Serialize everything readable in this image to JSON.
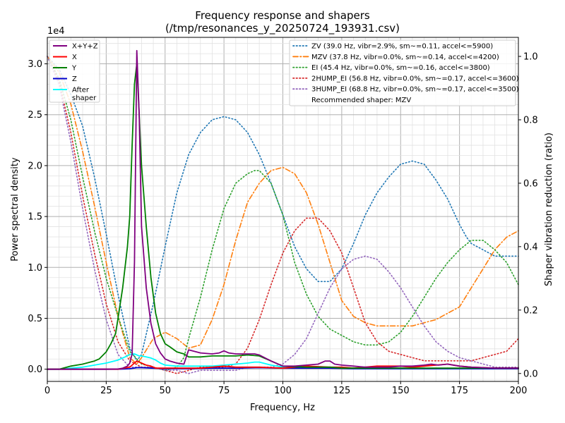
{
  "chart_data": {
    "type": "line",
    "title": "Frequency response and shapers",
    "subtitle": "(/tmp/resonances_y_20250724_193931.csv)",
    "xlabel": "Frequency, Hz",
    "ylabel": "Power spectral density",
    "y2label": "Shaper vibration reduction (ratio)",
    "y_offset_text": "1e4",
    "xlim": [
      0,
      200
    ],
    "ylim": [
      -1.2,
      32.6
    ],
    "ylim_unit": "x1e4",
    "y2lim": [
      -0.025,
      1.06
    ],
    "x_ticks": [
      0,
      25,
      50,
      75,
      100,
      125,
      150,
      175,
      200
    ],
    "x_tick_labels": [
      "0",
      "25",
      "50",
      "75",
      "100",
      "125",
      "150",
      "175",
      "200"
    ],
    "y_ticks": [
      0,
      5,
      10,
      15,
      20,
      25,
      30
    ],
    "y_tick_labels": [
      "0.0",
      "0.5",
      "1.0",
      "1.5",
      "2.0",
      "2.5",
      "3.0"
    ],
    "y2_ticks": [
      0,
      0.2,
      0.4,
      0.6,
      0.8,
      1.0
    ],
    "y2_tick_labels": [
      "0.0",
      "0.2",
      "0.4",
      "0.6",
      "0.8",
      "1.0"
    ],
    "grid": true,
    "minor_grid": true,
    "legend_left_placement": "top-left",
    "legend_right_placement": "top-right",
    "series": [
      {
        "name": "X+Y+Z",
        "axis": "left",
        "color": "#800080",
        "style": "solid",
        "x": [
          0,
          5,
          10,
          15,
          20,
          25,
          30,
          32,
          34,
          35,
          36,
          37,
          38,
          39,
          40,
          42,
          44,
          46,
          48,
          50,
          52,
          55,
          58,
          60,
          65,
          70,
          73,
          75,
          77,
          80,
          85,
          88,
          90,
          95,
          100,
          105,
          110,
          115,
          118,
          120,
          122,
          125,
          130,
          135,
          140,
          145,
          150,
          155,
          160,
          163,
          166,
          170,
          175,
          180,
          190,
          200
        ],
        "y": [
          0,
          0,
          0,
          0,
          0,
          0,
          0.02,
          0.1,
          0.3,
          0.6,
          1.5,
          10.5,
          31.3,
          25,
          14,
          8,
          4.5,
          2.5,
          1.6,
          1,
          0.8,
          0.6,
          0.5,
          1.9,
          1.6,
          1.5,
          1.6,
          1.8,
          1.6,
          1.5,
          1.5,
          1.5,
          1.4,
          0.8,
          0.3,
          0.3,
          0.4,
          0.5,
          0.8,
          0.8,
          0.5,
          0.4,
          0.3,
          0.2,
          0.2,
          0.2,
          0.3,
          0.3,
          0.4,
          0.5,
          0.4,
          0.5,
          0.3,
          0.2,
          0.1,
          0.1
        ]
      },
      {
        "name": "X",
        "axis": "left",
        "color": "#ff0000",
        "style": "solid",
        "x": [
          0,
          10,
          20,
          25,
          30,
          35,
          37,
          38,
          39,
          40,
          42,
          44,
          46,
          50,
          55,
          60,
          65,
          70,
          75,
          80,
          90,
          100,
          110,
          120,
          125,
          130,
          140,
          150,
          155,
          160,
          165,
          170,
          175,
          180,
          190,
          200
        ],
        "y": [
          0,
          0,
          0,
          0,
          0,
          0.2,
          0.6,
          0.8,
          0.7,
          0.6,
          0.4,
          0.3,
          0.1,
          0.1,
          0.1,
          0.1,
          0.1,
          0.2,
          0.3,
          0.2,
          0.2,
          0.1,
          0.3,
          0.2,
          0.2,
          0.1,
          0.3,
          0.3,
          0.2,
          0.3,
          0.4,
          0.5,
          0.3,
          0.2,
          0.1,
          0.1
        ]
      },
      {
        "name": "Y",
        "axis": "left",
        "color": "#008000",
        "style": "solid",
        "x": [
          0,
          5,
          10,
          15,
          20,
          22,
          25,
          27,
          29,
          30,
          32,
          34,
          35,
          36,
          37,
          38,
          39,
          40,
          42,
          44,
          46,
          48,
          50,
          52,
          55,
          58,
          60,
          65,
          70,
          75,
          80,
          85,
          90,
          95,
          100,
          110,
          120,
          125,
          130,
          140,
          150,
          160,
          170,
          180,
          190,
          200
        ],
        "y": [
          0,
          0,
          0.3,
          0.5,
          0.8,
          1,
          1.7,
          2.5,
          3.5,
          5,
          8,
          12,
          15,
          22,
          28,
          30,
          25,
          20,
          14,
          9,
          5.5,
          3.5,
          2.5,
          2.2,
          1.7,
          1.5,
          1.2,
          1.2,
          1.3,
          1.3,
          1.3,
          1.4,
          1.3,
          0.8,
          0.3,
          0.2,
          0.2,
          0.1,
          0.1,
          0.1,
          0.1,
          0.1,
          0.1,
          0.1,
          0.1,
          0.1
        ]
      },
      {
        "name": "Z",
        "axis": "left",
        "color": "#0000cc",
        "style": "solid",
        "x": [
          0,
          10,
          20,
          30,
          35,
          38,
          40,
          45,
          50,
          60,
          70,
          80,
          90,
          100,
          110,
          120,
          130,
          140,
          150,
          160,
          170,
          180,
          190,
          200
        ],
        "y": [
          0,
          0,
          0,
          0,
          0.05,
          0.15,
          0.15,
          0.1,
          0.05,
          0.05,
          0.1,
          0.1,
          0.15,
          0.1,
          0.1,
          0.1,
          0.05,
          0.05,
          0.05,
          0.05,
          0.05,
          0.05,
          0.05,
          0.05
        ]
      },
      {
        "name": "After\nshaper",
        "axis": "left",
        "color": "#00ffff",
        "style": "solid",
        "x": [
          0,
          5,
          10,
          15,
          20,
          25,
          30,
          33,
          35,
          37,
          39,
          40,
          42,
          44,
          46,
          48,
          50,
          55,
          60,
          65,
          70,
          75,
          80,
          85,
          88,
          90,
          95,
          100,
          105,
          110,
          115,
          120,
          125,
          130,
          140,
          150,
          160,
          170,
          180,
          190,
          200
        ],
        "y": [
          0,
          0,
          0.1,
          0.2,
          0.4,
          0.6,
          0.9,
          1.2,
          1.45,
          1.5,
          1.3,
          1.3,
          1.2,
          1.1,
          0.9,
          0.6,
          0.4,
          0.3,
          0.3,
          0.3,
          0.3,
          0.4,
          0.5,
          0.6,
          0.7,
          0.7,
          0.4,
          0.2,
          0.2,
          0.15,
          0.2,
          0.15,
          0.1,
          0.05,
          0.05,
          0.05,
          0.05,
          0.05,
          0.05,
          0.05,
          0.05
        ]
      },
      {
        "name": "ZV (39.0 Hz, vibr=2.9%, sm~=0.11, accel<=5900)",
        "axis": "right",
        "color": "#1f77b4",
        "style": "dotted",
        "x": [
          0,
          5,
          10,
          15,
          20,
          25,
          30,
          35,
          38,
          40,
          45,
          50,
          55,
          60,
          65,
          70,
          75,
          80,
          85,
          90,
          95,
          100,
          105,
          110,
          115,
          120,
          125,
          130,
          135,
          140,
          145,
          150,
          155,
          160,
          165,
          170,
          175,
          178,
          180,
          185,
          190,
          195,
          200
        ],
        "y": [
          1.0,
          0.96,
          0.88,
          0.78,
          0.62,
          0.44,
          0.25,
          0.08,
          0.04,
          0.06,
          0.22,
          0.4,
          0.57,
          0.69,
          0.76,
          0.8,
          0.81,
          0.8,
          0.76,
          0.69,
          0.6,
          0.5,
          0.4,
          0.33,
          0.29,
          0.29,
          0.33,
          0.41,
          0.5,
          0.57,
          0.62,
          0.66,
          0.67,
          0.66,
          0.61,
          0.55,
          0.47,
          0.43,
          0.41,
          0.39,
          0.37,
          0.37,
          0.37
        ]
      },
      {
        "name": "MZV (37.8 Hz, vibr=0.0%, sm~=0.14, accel<=4200)",
        "axis": "right",
        "color": "#ff7f0e",
        "style": "dashdot",
        "x": [
          0,
          5,
          10,
          15,
          20,
          25,
          30,
          35,
          38,
          40,
          45,
          50,
          55,
          60,
          65,
          70,
          75,
          80,
          85,
          90,
          95,
          100,
          105,
          110,
          115,
          120,
          125,
          130,
          135,
          140,
          145,
          150,
          155,
          160,
          165,
          170,
          175,
          180,
          185,
          190,
          195,
          200
        ],
        "y": [
          1.0,
          0.95,
          0.85,
          0.7,
          0.53,
          0.35,
          0.18,
          0.05,
          0.03,
          0.05,
          0.11,
          0.13,
          0.11,
          0.08,
          0.09,
          0.17,
          0.28,
          0.42,
          0.54,
          0.6,
          0.64,
          0.65,
          0.63,
          0.57,
          0.47,
          0.35,
          0.23,
          0.18,
          0.16,
          0.15,
          0.15,
          0.15,
          0.15,
          0.16,
          0.17,
          0.19,
          0.21,
          0.27,
          0.33,
          0.39,
          0.43,
          0.45
        ]
      },
      {
        "name": "EI (45.4 Hz, vibr=0.0%, sm~=0.16, accel<=3800)",
        "axis": "right",
        "color": "#2ca02c",
        "style": "dotted",
        "x": [
          0,
          5,
          10,
          15,
          20,
          25,
          30,
          35,
          40,
          45,
          50,
          55,
          58,
          60,
          65,
          70,
          75,
          80,
          85,
          88,
          90,
          95,
          100,
          105,
          110,
          115,
          120,
          125,
          130,
          135,
          140,
          145,
          150,
          155,
          160,
          165,
          170,
          175,
          180,
          185,
          190,
          195,
          200
        ],
        "y": [
          1.0,
          0.93,
          0.8,
          0.62,
          0.45,
          0.3,
          0.18,
          0.07,
          0.03,
          0.02,
          0.01,
          0.02,
          0.05,
          0.11,
          0.24,
          0.39,
          0.52,
          0.6,
          0.63,
          0.64,
          0.64,
          0.6,
          0.5,
          0.35,
          0.25,
          0.18,
          0.14,
          0.12,
          0.1,
          0.09,
          0.09,
          0.1,
          0.13,
          0.18,
          0.24,
          0.3,
          0.35,
          0.39,
          0.42,
          0.42,
          0.39,
          0.35,
          0.28
        ]
      },
      {
        "name": "2HUMP_EI (56.8 Hz, vibr=0.0%, sm~=0.17, accel<=3600)",
        "axis": "right",
        "color": "#d62728",
        "style": "dotted",
        "x": [
          0,
          5,
          10,
          15,
          20,
          25,
          30,
          35,
          40,
          45,
          50,
          55,
          60,
          65,
          70,
          75,
          80,
          85,
          90,
          95,
          100,
          105,
          110,
          115,
          120,
          125,
          130,
          135,
          140,
          145,
          150,
          155,
          160,
          165,
          170,
          175,
          180,
          185,
          190,
          195,
          200
        ],
        "y": [
          1.0,
          0.92,
          0.76,
          0.56,
          0.38,
          0.22,
          0.1,
          0.04,
          0.02,
          0.02,
          0.01,
          0.0,
          0.01,
          0.02,
          0.02,
          0.02,
          0.03,
          0.08,
          0.17,
          0.28,
          0.38,
          0.45,
          0.49,
          0.49,
          0.45,
          0.38,
          0.27,
          0.16,
          0.1,
          0.07,
          0.06,
          0.05,
          0.04,
          0.04,
          0.04,
          0.04,
          0.04,
          0.05,
          0.06,
          0.07,
          0.11
        ]
      },
      {
        "name": "3HUMP_EI (68.8 Hz, vibr=0.0%, sm~=0.17, accel<=3500)",
        "axis": "right",
        "color": "#9467bd",
        "style": "dotted",
        "x": [
          0,
          5,
          10,
          15,
          20,
          25,
          30,
          35,
          40,
          45,
          50,
          55,
          60,
          65,
          70,
          75,
          80,
          85,
          90,
          95,
          100,
          105,
          110,
          115,
          120,
          125,
          130,
          135,
          140,
          145,
          150,
          155,
          160,
          165,
          170,
          175,
          180,
          185,
          190,
          195,
          200
        ],
        "y": [
          1.0,
          0.91,
          0.73,
          0.52,
          0.33,
          0.17,
          0.06,
          0.02,
          0.02,
          0.02,
          0.01,
          0.01,
          0.0,
          0.01,
          0.01,
          0.01,
          0.01,
          0.02,
          0.02,
          0.02,
          0.03,
          0.06,
          0.11,
          0.19,
          0.27,
          0.33,
          0.36,
          0.37,
          0.36,
          0.32,
          0.27,
          0.21,
          0.15,
          0.1,
          0.07,
          0.05,
          0.04,
          0.03,
          0.02,
          0.02,
          0.02
        ]
      }
    ],
    "legend_left": [
      {
        "label": "X+Y+Z",
        "color": "#800080",
        "style": "solid"
      },
      {
        "label": "X",
        "color": "#ff0000",
        "style": "solid"
      },
      {
        "label": "Y",
        "color": "#008000",
        "style": "solid"
      },
      {
        "label": "Z",
        "color": "#0000cc",
        "style": "solid"
      },
      {
        "label": "After",
        "label2": "shaper",
        "color": "#00ffff",
        "style": "solid"
      }
    ],
    "legend_right": [
      {
        "label": "ZV (39.0 Hz, vibr=2.9%, sm~=0.11, accel<=5900)",
        "color": "#1f77b4",
        "style": "dotted"
      },
      {
        "label": "MZV (37.8 Hz, vibr=0.0%, sm~=0.14, accel<=4200)",
        "color": "#ff7f0e",
        "style": "dashdot"
      },
      {
        "label": "EI (45.4 Hz, vibr=0.0%, sm~=0.16, accel<=3800)",
        "color": "#2ca02c",
        "style": "dotted"
      },
      {
        "label": "2HUMP_EI (56.8 Hz, vibr=0.0%, sm~=0.17, accel<=3600)",
        "color": "#d62728",
        "style": "dotted"
      },
      {
        "label": "3HUMP_EI (68.8 Hz, vibr=0.0%, sm~=0.17, accel<=3500)",
        "color": "#9467bd",
        "style": "dotted"
      },
      {
        "label": "Recommended shaper: MZV",
        "color": "",
        "style": "none"
      }
    ]
  }
}
